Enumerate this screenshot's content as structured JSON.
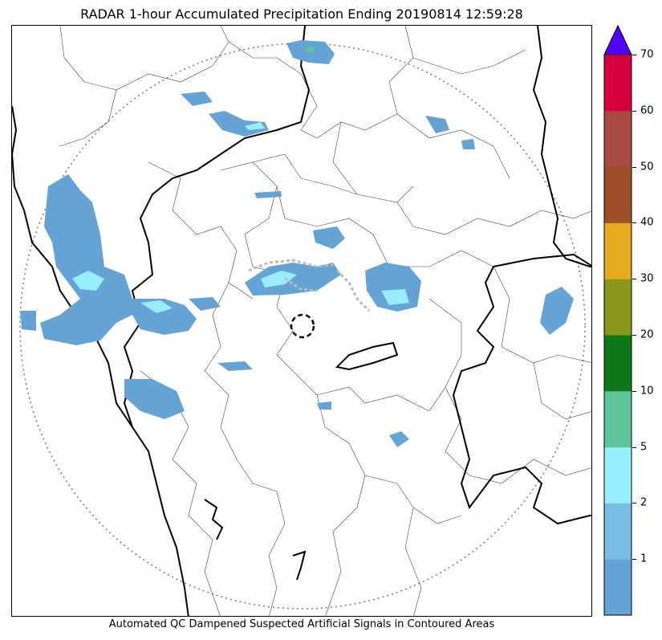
{
  "title": "RADAR 1-hour Accumulated Precipitation Ending 20190814 12:59:28",
  "footer": "Automated QC Dampened Suspected Artificial Signals in Contoured Areas",
  "colorbar": {
    "ticks": [
      "1",
      "2",
      "5",
      "10",
      "20",
      "30",
      "40",
      "50",
      "60",
      "70"
    ],
    "colors": [
      "#65a3d4",
      "#78bde3",
      "#97ecfd",
      "#5cc498",
      "#0e7719",
      "#8a9718",
      "#e6aa1d",
      "#9f4f28",
      "#a84b45",
      "#d6003f"
    ],
    "extend_color": "#5200ff"
  },
  "map": {
    "precip_low_color": "#65a3d4",
    "precip_mid_color": "#97ecfd",
    "precip_high_color": "#5cc498",
    "artificial_signal_color": "#bbbbbb"
  }
}
